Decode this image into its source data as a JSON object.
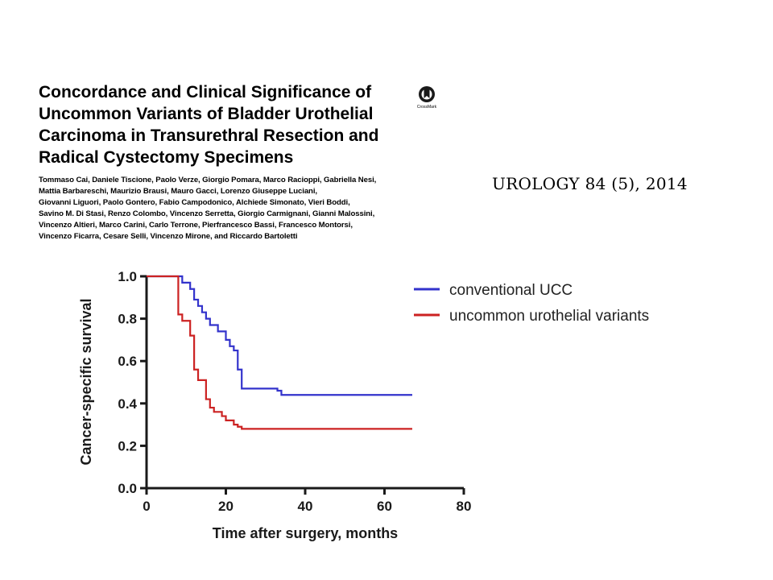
{
  "paper": {
    "title": "Concordance and Clinical Significance of\nUncommon Variants of Bladder Urothelial\nCarcinoma in Transurethral Resection and\nRadical Cystectomy Specimens",
    "authors": "Tommaso Cai, Daniele Tiscione, Paolo Verze, Giorgio Pomara, Marco Racioppi, Gabriella Nesi,\nMattia Barbareschi, Maurizio Brausi, Mauro Gacci, Lorenzo Giuseppe Luciani,\nGiovanni Liguori, Paolo Gontero, Fabio Campodonico, Alchiede Simonato, Vieri Boddi,\nSavino M. Di Stasi, Renzo Colombo, Vincenzo Serretta, Giorgio Carmignani, Gianni Malossini,\nVincenzo Altieri, Marco Carini, Carlo Terrone, Pierfrancesco Bassi, Francesco Montorsi,\nVincenzo Ficarra, Cesare Selli, Vincenzo Mirone, and Riccardo Bartoletti",
    "citation": "UROLOGY 84 (5), 2014",
    "crossmark_label": "CrossMark"
  },
  "chart_data": {
    "type": "line",
    "title": "",
    "xlabel": "Time after surgery, months",
    "ylabel": "Cancer-specific survival",
    "xlim": [
      0,
      80
    ],
    "ylim": [
      0,
      1.0
    ],
    "xticks": [
      "0",
      "20",
      "40",
      "60",
      "80"
    ],
    "yticks": [
      "0.0",
      "0.2",
      "0.4",
      "0.6",
      "0.8",
      "1.0"
    ],
    "step": true,
    "grid": false,
    "legend_position": "top-right",
    "series": [
      {
        "name": "conventional UCC",
        "color": "#3333cc",
        "x": [
          0,
          9,
          11,
          12,
          13,
          14,
          15,
          16,
          18,
          20,
          21,
          22,
          23,
          24,
          33,
          34,
          67
        ],
        "y": [
          1.0,
          0.97,
          0.94,
          0.89,
          0.86,
          0.83,
          0.8,
          0.77,
          0.74,
          0.7,
          0.67,
          0.65,
          0.56,
          0.47,
          0.46,
          0.44,
          0.44
        ]
      },
      {
        "name": "uncommon urothelial variants",
        "color": "#cc2222",
        "x": [
          0,
          8,
          9,
          11,
          12,
          13,
          15,
          16,
          17,
          19,
          20,
          22,
          23,
          24,
          67
        ],
        "y": [
          1.0,
          0.82,
          0.79,
          0.72,
          0.56,
          0.51,
          0.42,
          0.38,
          0.36,
          0.34,
          0.32,
          0.3,
          0.29,
          0.28,
          0.28
        ]
      }
    ]
  }
}
